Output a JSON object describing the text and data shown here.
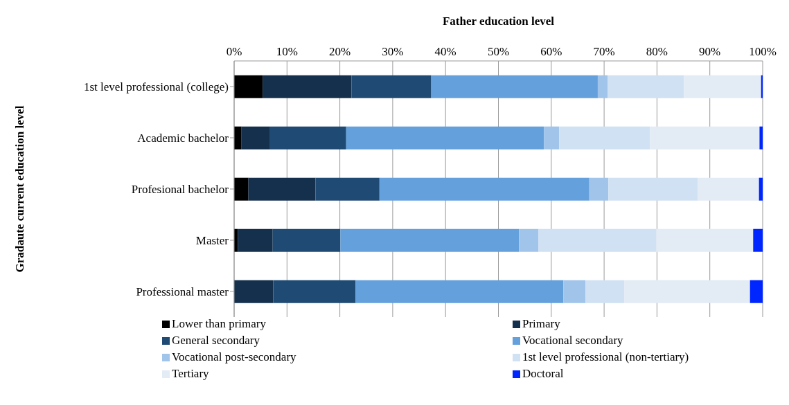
{
  "chart_data": {
    "type": "bar",
    "orientation": "horizontal",
    "stacked": true,
    "xlabel": "Father education level",
    "ylabel": "Gradaute current education level",
    "categories": [
      "1st level professional (college)",
      "Academic bachelor",
      "Profesional bachelor",
      "Master",
      "Professional master"
    ],
    "series": [
      {
        "name": "Lower than primary",
        "color": "#000000",
        "values": [
          5.4,
          1.4,
          2.7,
          0.7,
          0
        ]
      },
      {
        "name": "Primary",
        "color": "#14304d",
        "values": [
          16.8,
          5.4,
          12.7,
          6.6,
          7.4
        ]
      },
      {
        "name": "General secondary",
        "color": "#1f4a74",
        "values": [
          15.1,
          14.4,
          12.1,
          12.8,
          15.6
        ]
      },
      {
        "name": "Vocational secondary",
        "color": "#64a0dc",
        "values": [
          31.5,
          37.4,
          39.7,
          33.8,
          39.3
        ]
      },
      {
        "name": "Vocational post-secondary",
        "color": "#a0c4ea",
        "values": [
          1.9,
          2.9,
          3.6,
          3.7,
          4.2
        ]
      },
      {
        "name": "1st level professional (non-tertiary)",
        "color": "#d0e1f3",
        "values": [
          14.4,
          17.2,
          16.9,
          22.3,
          7.3
        ]
      },
      {
        "name": "Tertiary",
        "color": "#e3ebf5",
        "values": [
          14.6,
          20.7,
          11.6,
          18.3,
          23.8
        ]
      },
      {
        "name": "Doctoral",
        "color": "#0026ff",
        "values": [
          0.3,
          0.6,
          0.7,
          1.8,
          2.4
        ]
      }
    ],
    "xlim": [
      0,
      100
    ],
    "xticks": [
      {
        "value": 0,
        "label": "0%"
      },
      {
        "value": 10,
        "label": "10%"
      },
      {
        "value": 20,
        "label": "20%"
      },
      {
        "value": 30,
        "label": "30%"
      },
      {
        "value": 40,
        "label": "40%"
      },
      {
        "value": 50,
        "label": "50%"
      },
      {
        "value": 60,
        "label": "60%"
      },
      {
        "value": 70,
        "label": "70%"
      },
      {
        "value": 80,
        "label": "80%"
      },
      {
        "value": 90,
        "label": "90%"
      },
      {
        "value": 100,
        "label": "100%"
      }
    ],
    "grid": "x",
    "legend": "bottom"
  }
}
